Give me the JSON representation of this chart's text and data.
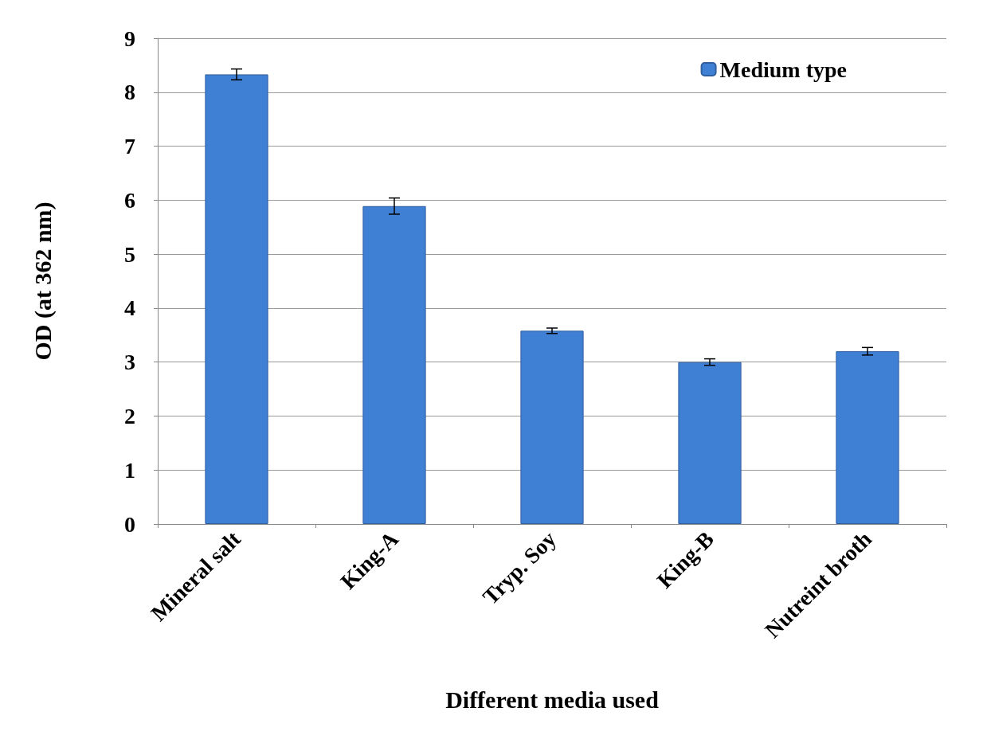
{
  "chart_data": {
    "type": "bar",
    "xlabel": "Different media used",
    "ylabel": "OD (at 362 nm)",
    "categories": [
      "Mineral salt",
      "King-A",
      "Tryp. Soy",
      "King-B",
      "Nutreint broth"
    ],
    "series": [
      {
        "name": "Medium type",
        "color": "#3f80d4",
        "values": [
          8.33,
          5.89,
          3.58,
          3.0,
          3.2
        ],
        "errors": [
          0.1,
          0.15,
          0.05,
          0.06,
          0.07
        ]
      }
    ],
    "ylim": [
      0,
      9
    ],
    "yticks": [
      0,
      1,
      2,
      3,
      4,
      5,
      6,
      7,
      8,
      9
    ],
    "grid": "y",
    "legend": "top right"
  }
}
